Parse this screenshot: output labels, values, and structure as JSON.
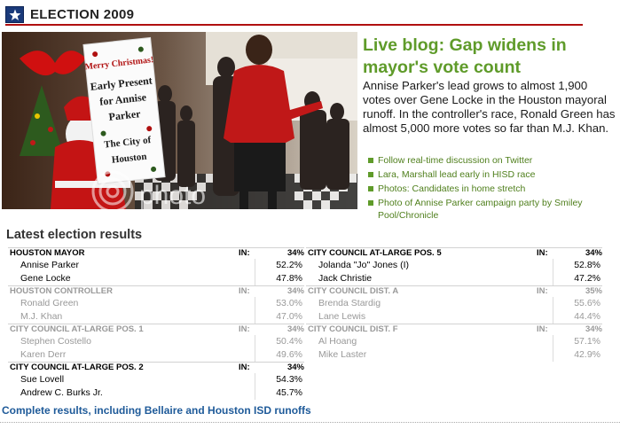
{
  "header": {
    "title": "ELECTION 2009",
    "accent_color": "#b01010",
    "star_icon": "star-icon"
  },
  "photo": {
    "sign": {
      "line1": "Merry Christmas!",
      "line2": "Early Present",
      "line3": "for Annise",
      "line4": "Parker",
      "line5": "The City of",
      "line6": "Houston"
    },
    "watermark": "photo"
  },
  "story": {
    "headline": "Live blog: Gap widens in mayor's vote count",
    "summary": "Annise Parker's lead grows to almost 1,900 votes over Gene Locke in the Houston mayoral runoff. In the controller's race, Ronald Green has almost 5,000 more votes so far than M.J. Khan.",
    "links": [
      "Follow real-time discussion on Twitter",
      "Lara, Marshall lead early in HISD race",
      "Photos: Candidates in home stretch",
      "Photo of Annise Parker campaign party by Smiley Pool/Chronicle"
    ]
  },
  "results": {
    "title": "Latest election results",
    "left": [
      {
        "race": "HOUSTON MAYOR",
        "in_label": "IN:",
        "in_pct": "34%",
        "faded": false,
        "candidates": [
          {
            "name": "Annise Parker",
            "pct": "52.2%"
          },
          {
            "name": "Gene Locke",
            "pct": "47.8%"
          }
        ]
      },
      {
        "race": "HOUSTON CONTROLLER",
        "in_label": "IN:",
        "in_pct": "34%",
        "faded": true,
        "candidates": [
          {
            "name": "Ronald Green",
            "pct": "53.0%"
          },
          {
            "name": "M.J. Khan",
            "pct": "47.0%"
          }
        ]
      },
      {
        "race": "CITY COUNCIL AT-LARGE POS. 1",
        "in_label": "IN:",
        "in_pct": "34%",
        "faded": true,
        "candidates": [
          {
            "name": "Stephen Costello",
            "pct": "50.4%"
          },
          {
            "name": "Karen Derr",
            "pct": "49.6%"
          }
        ]
      },
      {
        "race": "CITY COUNCIL AT-LARGE POS. 2",
        "in_label": "IN:",
        "in_pct": "34%",
        "faded": false,
        "candidates": [
          {
            "name": "Sue Lovell",
            "pct": "54.3%"
          },
          {
            "name": "Andrew C. Burks Jr.",
            "pct": "45.7%"
          }
        ]
      }
    ],
    "right": [
      {
        "race": "CITY COUNCIL AT-LARGE POS. 5",
        "in_label": "IN:",
        "in_pct": "34%",
        "faded": false,
        "candidates": [
          {
            "name": "Jolanda \"Jo\" Jones (I)",
            "pct": "52.8%"
          },
          {
            "name": "Jack Christie",
            "pct": "47.2%"
          }
        ]
      },
      {
        "race": "CITY COUNCIL DIST. A",
        "in_label": "IN:",
        "in_pct": "35%",
        "faded": true,
        "candidates": [
          {
            "name": "Brenda Stardig",
            "pct": "55.6%"
          },
          {
            "name": "Lane Lewis",
            "pct": "44.4%"
          }
        ]
      },
      {
        "race": "CITY COUNCIL DIST. F",
        "in_label": "IN:",
        "in_pct": "34%",
        "faded": true,
        "candidates": [
          {
            "name": "Al Hoang",
            "pct": "57.1%"
          },
          {
            "name": "Mike Laster",
            "pct": "42.9%"
          }
        ]
      }
    ],
    "complete_link": "Complete results, including Bellaire and Houston ISD runoffs"
  }
}
